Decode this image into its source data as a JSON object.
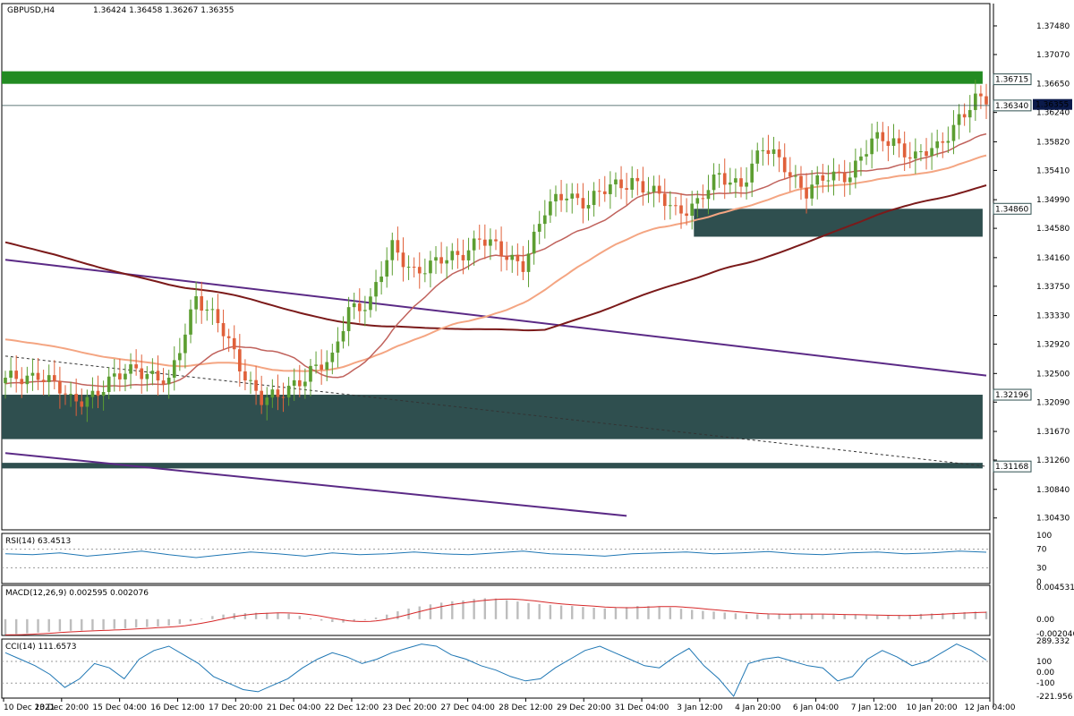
{
  "header": {
    "symbol": "GBPUSD,H4",
    "ohlc": "1.36424 1.36458 1.36267 1.36355"
  },
  "chart_data": {
    "type": "candlestick",
    "price_axis": {
      "ylim": [
        1.3026,
        1.378
      ],
      "ticks": [
        "1.37480",
        "1.37070",
        "1.36650",
        "1.36240",
        "1.35820",
        "1.35410",
        "1.34990",
        "1.34580",
        "1.34160",
        "1.33750",
        "1.33330",
        "1.32920",
        "1.32500",
        "1.32090",
        "1.31670",
        "1.31260",
        "1.30840",
        "1.30430"
      ]
    },
    "time_axis": {
      "labels": [
        "10 Dec 2021",
        "13 Dec 20:00",
        "15 Dec 04:00",
        "16 Dec 12:00",
        "17 Dec 20:00",
        "21 Dec 04:00",
        "22 Dec 12:00",
        "23 Dec 20:00",
        "27 Dec 04:00",
        "28 Dec 12:00",
        "29 Dec 20:00",
        "31 Dec 04:00",
        "3 Jan 12:00",
        "4 Jan 20:00",
        "6 Jan 04:00",
        "7 Jan 12:00",
        "10 Jan 20:00",
        "12 Jan 04:00"
      ]
    },
    "colors": {
      "bull": "#5c9e31",
      "bear": "#e0603a",
      "zone": "#2f4f4f",
      "zone_green": "#228b22",
      "ma_fast": "#c0625c",
      "ma_mid": "#f4a582",
      "ma_slow": "#7b1a1a",
      "channel": "#5b2a86",
      "osc": "#1f77b4",
      "signal": "#d62728",
      "hist": "#bdbdbd"
    },
    "anchors": [
      {
        "i": 0,
        "c": 1.3238
      },
      {
        "i": 6,
        "c": 1.3252
      },
      {
        "i": 12,
        "c": 1.321
      },
      {
        "i": 18,
        "c": 1.3228
      },
      {
        "i": 24,
        "c": 1.3262
      },
      {
        "i": 30,
        "c": 1.3232
      },
      {
        "i": 35,
        "c": 1.3365
      },
      {
        "i": 39,
        "c": 1.332
      },
      {
        "i": 43,
        "c": 1.3262
      },
      {
        "i": 47,
        "c": 1.3215
      },
      {
        "i": 50,
        "c": 1.3212
      },
      {
        "i": 56,
        "c": 1.3258
      },
      {
        "i": 60,
        "c": 1.3265
      },
      {
        "i": 63,
        "c": 1.3345
      },
      {
        "i": 67,
        "c": 1.3355
      },
      {
        "i": 71,
        "c": 1.3428
      },
      {
        "i": 75,
        "c": 1.34
      },
      {
        "i": 79,
        "c": 1.3405
      },
      {
        "i": 83,
        "c": 1.342
      },
      {
        "i": 87,
        "c": 1.3445
      },
      {
        "i": 91,
        "c": 1.342
      },
      {
        "i": 95,
        "c": 1.341
      },
      {
        "i": 99,
        "c": 1.348
      },
      {
        "i": 103,
        "c": 1.351
      },
      {
        "i": 107,
        "c": 1.3495
      },
      {
        "i": 111,
        "c": 1.3515
      },
      {
        "i": 115,
        "c": 1.353
      },
      {
        "i": 119,
        "c": 1.3505
      },
      {
        "i": 123,
        "c": 1.3485
      },
      {
        "i": 127,
        "c": 1.3495
      },
      {
        "i": 131,
        "c": 1.353
      },
      {
        "i": 135,
        "c": 1.3525
      },
      {
        "i": 139,
        "c": 1.357
      },
      {
        "i": 143,
        "c": 1.355
      },
      {
        "i": 147,
        "c": 1.351
      },
      {
        "i": 151,
        "c": 1.353
      },
      {
        "i": 155,
        "c": 1.354
      },
      {
        "i": 159,
        "c": 1.358
      },
      {
        "i": 163,
        "c": 1.3585
      },
      {
        "i": 167,
        "c": 1.356
      },
      {
        "i": 171,
        "c": 1.357
      },
      {
        "i": 175,
        "c": 1.362
      },
      {
        "i": 178,
        "c": 1.364
      },
      {
        "i": 180,
        "c": 1.36355
      }
    ],
    "levels": [
      {
        "label": "1.36715",
        "price": 1.36715
      },
      {
        "label": "1.36340",
        "price": 1.3634
      },
      {
        "label": "1.34860",
        "price": 1.3486
      },
      {
        "label": "1.32196",
        "price": 1.32196
      },
      {
        "label": "1.31168",
        "price": 1.31168
      }
    ],
    "current_price": {
      "label": "1.36355",
      "price": 1.36355
    },
    "zones": [
      {
        "from_i": 0,
        "to_i": 179,
        "top": 1.3683,
        "bottom": 1.3665,
        "color": "zone_green"
      },
      {
        "from_i": 127,
        "to_i": 179,
        "top": 1.3486,
        "bottom": 1.3446,
        "color": "zone"
      },
      {
        "from_i": 0,
        "to_i": 179,
        "top": 1.32196,
        "bottom": 1.3156,
        "color": "zone"
      },
      {
        "from_i": 0,
        "to_i": 179,
        "top": 1.3122,
        "bottom": 1.3114,
        "color": "zone"
      }
    ],
    "lines": [
      {
        "type": "channel",
        "from": [
          0,
          1.3413
        ],
        "to": [
          180,
          1.3247
        ]
      },
      {
        "type": "channel",
        "from": [
          0,
          1.3136
        ],
        "to": [
          114,
          1.3046
        ]
      },
      {
        "type": "dashed",
        "from": [
          0,
          1.3275
        ],
        "to": [
          180,
          1.3117
        ]
      }
    ],
    "rsi": {
      "label": "RSI(14) 63.4513",
      "levels": [
        "100",
        "70",
        "30",
        "0"
      ],
      "values": [
        60,
        58,
        62,
        55,
        60,
        66,
        58,
        52,
        58,
        64,
        60,
        55,
        62,
        58,
        60,
        64,
        60,
        58,
        62,
        66,
        60,
        58,
        55,
        60,
        62,
        64,
        60,
        62,
        65,
        60,
        58,
        62,
        64,
        60,
        62,
        66,
        63.45
      ]
    },
    "macd": {
      "label": "MACD(12,26,9) 0.002595 0.002076",
      "ticks": [
        "0.004531",
        "0.00",
        "-0.002046"
      ],
      "max": 0.004531,
      "min": -0.002046
    },
    "cci": {
      "label": "CCI(14) 111.6573",
      "ticks": [
        "289.332",
        "100",
        "0.00",
        "-100",
        "-221.956"
      ],
      "max": 289.332,
      "min": -221.956,
      "values": [
        180,
        120,
        60,
        -20,
        -140,
        -60,
        80,
        40,
        -60,
        120,
        200,
        240,
        160,
        80,
        -40,
        -100,
        -160,
        -180,
        -120,
        -60,
        40,
        120,
        180,
        140,
        80,
        120,
        180,
        220,
        260,
        240,
        160,
        120,
        60,
        20,
        -40,
        -80,
        -60,
        40,
        120,
        200,
        240,
        180,
        120,
        60,
        40,
        140,
        220,
        60,
        -60,
        -221,
        80,
        120,
        140,
        100,
        60,
        40,
        -80,
        -40,
        120,
        200,
        140,
        60,
        100,
        180,
        260,
        200,
        111.66
      ]
    }
  }
}
